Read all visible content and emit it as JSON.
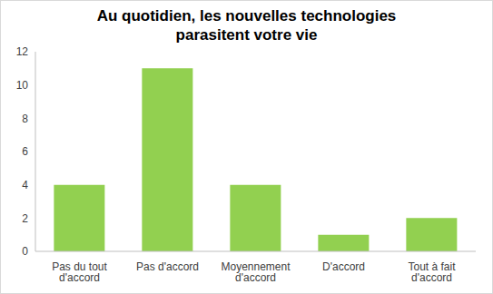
{
  "chart_data": {
    "type": "bar",
    "title": "Au quotidien, les nouvelles technologies parasitent votre vie",
    "categories": [
      "Pas du tout d'accord",
      "Pas d'accord",
      "Moyennement d'accord",
      "D'accord",
      "Tout à fait d'accord"
    ],
    "values": [
      4,
      11,
      4,
      1,
      2
    ],
    "color": "#92d050",
    "ylim": [
      0,
      12
    ],
    "yticks": [
      0,
      2,
      4,
      6,
      8,
      10,
      12
    ],
    "grid": false
  }
}
